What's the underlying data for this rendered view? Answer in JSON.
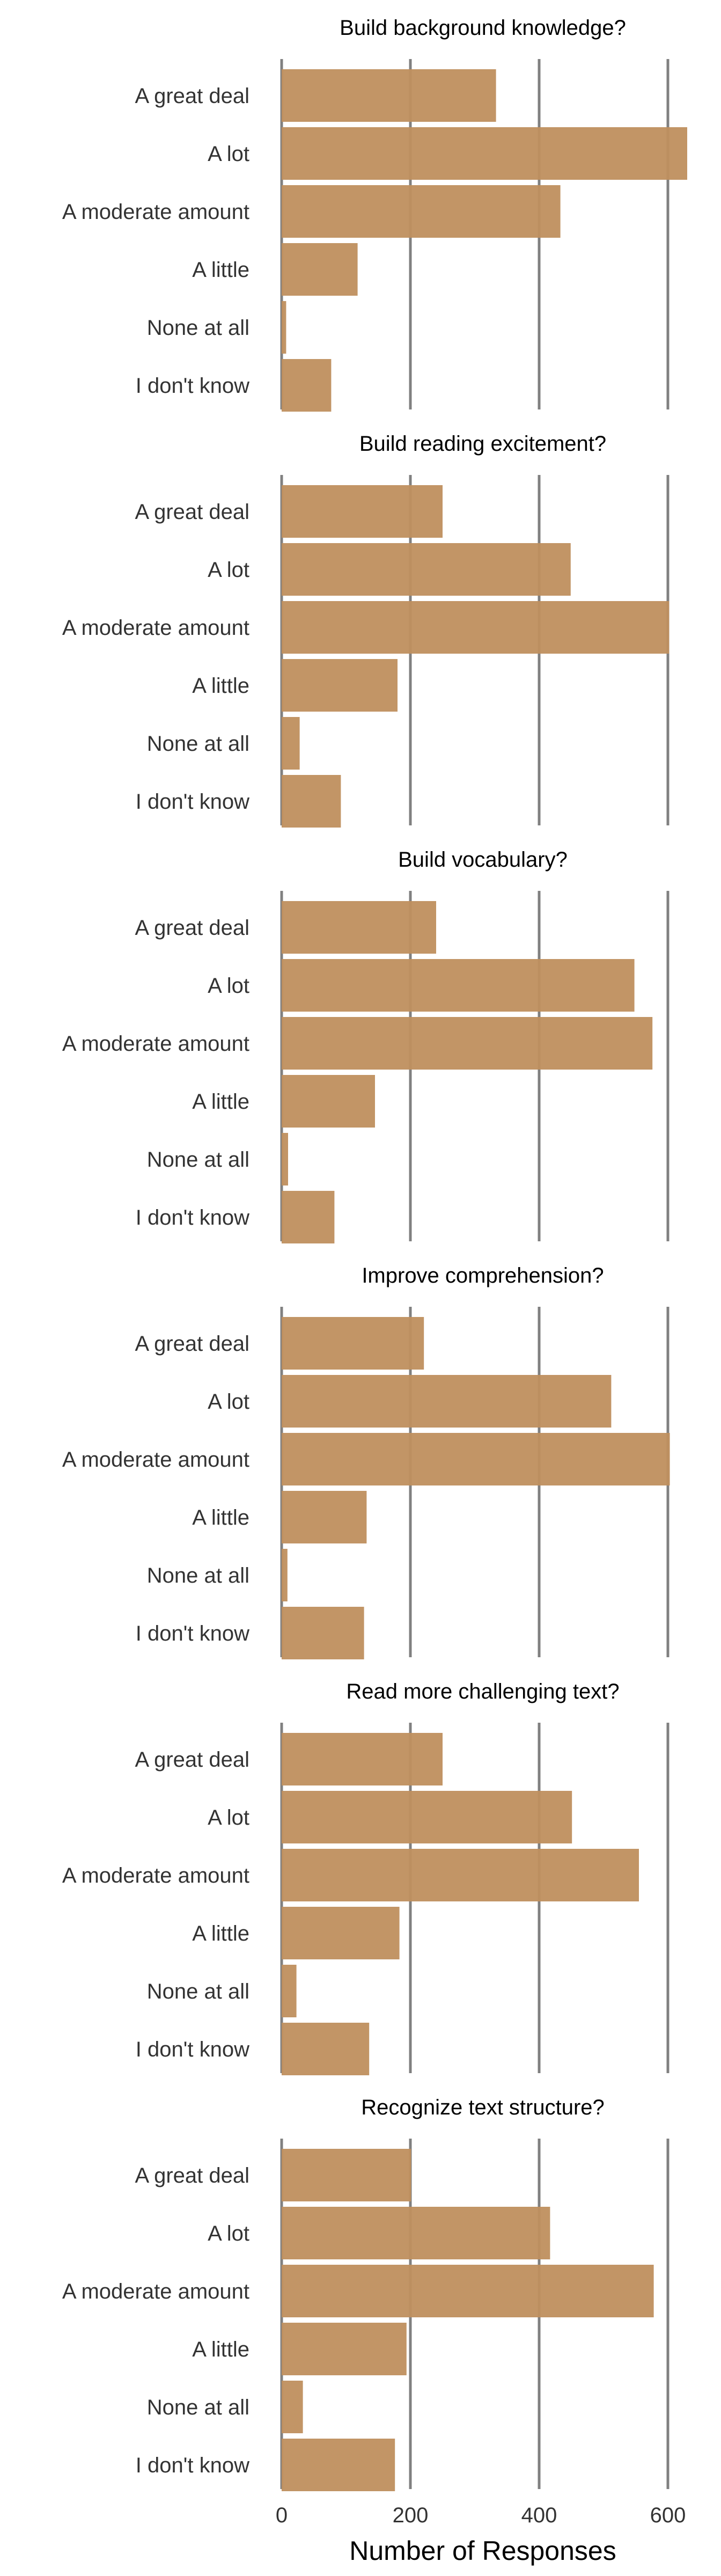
{
  "chart_data": {
    "type": "bar",
    "orientation": "horizontal",
    "bar_color": "#bf8f5e",
    "gridline_color": "#808080",
    "grid": "vertical lines at x ticks",
    "xlabel": "Number of Responses",
    "xlim": [
      0,
      650
    ],
    "xticks": [
      0,
      200,
      400,
      600
    ],
    "categories": [
      "A great deal",
      "A lot",
      "A moderate amount",
      "A little",
      "None at all",
      "I don't know"
    ],
    "panels": [
      {
        "title": "Build background knowledge?",
        "values": [
          333,
          630,
          433,
          118,
          7,
          77
        ]
      },
      {
        "title": "Build reading excitement?",
        "values": [
          250,
          449,
          602,
          180,
          28,
          92
        ]
      },
      {
        "title": "Build vocabulary?",
        "values": [
          240,
          548,
          576,
          145,
          10,
          82
        ]
      },
      {
        "title": "Improve comprehension?",
        "values": [
          221,
          512,
          603,
          132,
          9,
          128
        ]
      },
      {
        "title": "Read more challenging text?",
        "values": [
          250,
          451,
          555,
          183,
          23,
          136
        ]
      },
      {
        "title": "Recognize text structure?",
        "values": [
          201,
          417,
          578,
          194,
          33,
          176
        ]
      }
    ]
  }
}
